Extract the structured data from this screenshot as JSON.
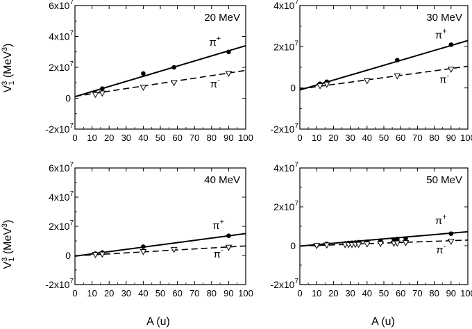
{
  "figure": {
    "ylabel_main": "V",
    "ylabel_sup": "3",
    "ylabel_sub": "1",
    "ylabel_unit": " (MeV",
    "ylabel_unit_sup": "3",
    "ylabel_close": ")",
    "xlabel": "A (u)"
  },
  "chart_data": [
    {
      "type": "scatter",
      "title": "20 MeV",
      "xlim": [
        0,
        100
      ],
      "ylim": [
        -20000000,
        60000000
      ],
      "xticks": [
        "0",
        "10",
        "20",
        "30",
        "40",
        "50",
        "60",
        "70",
        "80",
        "90",
        "100"
      ],
      "yticks": [
        {
          "value": 60000000,
          "base": "6x10",
          "exp": "7"
        },
        {
          "value": 40000000,
          "base": "4x10",
          "exp": "7"
        },
        {
          "value": 20000000,
          "base": "2x10",
          "exp": "7"
        },
        {
          "value": 0,
          "base": "0",
          "exp": ""
        },
        {
          "value": -20000000,
          "base": "-2x10",
          "exp": "7"
        }
      ],
      "series": [
        {
          "name": "π+",
          "label_base": "π",
          "label_sup": "+",
          "marker": "filled-circle",
          "line": "solid",
          "points": [
            [
              12,
              3200000
            ],
            [
              16,
              6200000
            ],
            [
              40,
              16000000
            ],
            [
              58,
              20000000
            ],
            [
              90,
              30000000
            ]
          ],
          "fit": [
            [
              0,
              1000000
            ],
            [
              100,
              34000000
            ]
          ]
        },
        {
          "name": "π-",
          "label_base": "π",
          "label_sup": "-",
          "marker": "open-triangle-down",
          "line": "dashed",
          "points": [
            [
              12,
              2300000
            ],
            [
              16,
              3200000
            ],
            [
              40,
              7000000
            ],
            [
              58,
              10000000
            ],
            [
              90,
              16000000
            ]
          ],
          "fit": [
            [
              0,
              1200000
            ],
            [
              100,
              18000000
            ]
          ]
        }
      ]
    },
    {
      "type": "scatter",
      "title": "30 MeV",
      "xlim": [
        0,
        100
      ],
      "ylim": [
        -20000000,
        40000000
      ],
      "xticks": [
        "0",
        "10",
        "20",
        "30",
        "40",
        "50",
        "60",
        "70",
        "80",
        "90",
        "100"
      ],
      "yticks": [
        {
          "value": 40000000,
          "base": "4x10",
          "exp": "7"
        },
        {
          "value": 20000000,
          "base": "2x10",
          "exp": "7"
        },
        {
          "value": 0,
          "base": "0",
          "exp": ""
        },
        {
          "value": -20000000,
          "base": "-2x10",
          "exp": "7"
        }
      ],
      "series": [
        {
          "name": "π+",
          "label_base": "π",
          "label_sup": "+",
          "marker": "filled-circle",
          "line": "solid",
          "points": [
            [
              12,
              2000000
            ],
            [
              16,
              3000000
            ],
            [
              58,
              13500000
            ],
            [
              90,
              21000000
            ]
          ],
          "fit": [
            [
              0,
              -1000000
            ],
            [
              100,
              23000000
            ]
          ]
        },
        {
          "name": "π-",
          "label_base": "π",
          "label_sup": "-",
          "marker": "open-triangle-down",
          "line": "dashed",
          "points": [
            [
              12,
              1000000
            ],
            [
              16,
              1700000
            ],
            [
              40,
              3400000
            ],
            [
              58,
              5800000
            ],
            [
              90,
              9000000
            ]
          ],
          "fit": [
            [
              0,
              -500000
            ],
            [
              100,
              10500000
            ]
          ]
        }
      ]
    },
    {
      "type": "scatter",
      "title": "40 MeV",
      "xlim": [
        0,
        100
      ],
      "ylim": [
        -20000000,
        60000000
      ],
      "xticks": [
        "0",
        "10",
        "20",
        "30",
        "40",
        "50",
        "60",
        "70",
        "80",
        "90",
        "100"
      ],
      "yticks": [
        {
          "value": 60000000,
          "base": "6x10",
          "exp": "7"
        },
        {
          "value": 40000000,
          "base": "4x10",
          "exp": "7"
        },
        {
          "value": 20000000,
          "base": "2x10",
          "exp": "7"
        },
        {
          "value": 0,
          "base": "0",
          "exp": ""
        },
        {
          "value": -20000000,
          "base": "-2x10",
          "exp": "7"
        }
      ],
      "series": [
        {
          "name": "π+",
          "label_base": "π",
          "label_sup": "+",
          "marker": "filled-circle",
          "line": "solid",
          "points": [
            [
              12,
              1200000
            ],
            [
              16,
              2000000
            ],
            [
              40,
              6000000
            ],
            [
              90,
              13500000
            ]
          ],
          "fit": [
            [
              0,
              -500000
            ],
            [
              100,
              15000000
            ]
          ]
        },
        {
          "name": "π-",
          "label_base": "π",
          "label_sup": "-",
          "marker": "open-triangle-down",
          "line": "dashed",
          "points": [
            [
              12,
              500000
            ],
            [
              16,
              800000
            ],
            [
              40,
              2500000
            ],
            [
              58,
              4000000
            ],
            [
              90,
              5500000
            ]
          ],
          "fit": [
            [
              0,
              -300000
            ],
            [
              100,
              6500000
            ]
          ]
        }
      ]
    },
    {
      "type": "scatter",
      "title": "50 MeV",
      "xlim": [
        0,
        100
      ],
      "ylim": [
        -20000000,
        40000000
      ],
      "xticks": [
        "0",
        "10",
        "20",
        "30",
        "40",
        "50",
        "60",
        "70",
        "80",
        "90",
        "100"
      ],
      "yticks": [
        {
          "value": 40000000,
          "base": "4x10",
          "exp": "7"
        },
        {
          "value": 20000000,
          "base": "2x10",
          "exp": "7"
        },
        {
          "value": 0,
          "base": "0",
          "exp": ""
        },
        {
          "value": -20000000,
          "base": "-2x10",
          "exp": "7"
        }
      ],
      "series": [
        {
          "name": "π+",
          "label_base": "π",
          "label_sup": "+",
          "marker": "filled-circle",
          "line": "solid",
          "points": [
            [
              10,
              200000
            ],
            [
              16,
              900000
            ],
            [
              27,
              1200000
            ],
            [
              29,
              1400000
            ],
            [
              31,
              1500000
            ],
            [
              33,
              1600000
            ],
            [
              35,
              1800000
            ],
            [
              40,
              2000000
            ],
            [
              48,
              2600000
            ],
            [
              56,
              3200000
            ],
            [
              58,
              3400000
            ],
            [
              63,
              3700000
            ],
            [
              90,
              6200000
            ]
          ],
          "fit": [
            [
              0,
              -200000
            ],
            [
              100,
              7200000
            ]
          ]
        },
        {
          "name": "π-",
          "label_base": "π",
          "label_sup": "-",
          "marker": "open-triangle-down",
          "line": "dashed",
          "points": [
            [
              10,
              0
            ],
            [
              16,
              300000
            ],
            [
              27,
              400000
            ],
            [
              29,
              500000
            ],
            [
              31,
              500000
            ],
            [
              33,
              600000
            ],
            [
              35,
              600000
            ],
            [
              40,
              800000
            ],
            [
              48,
              1000000
            ],
            [
              56,
              1200000
            ],
            [
              58,
              1300000
            ],
            [
              63,
              1500000
            ],
            [
              90,
              2200000
            ]
          ],
          "fit": [
            [
              0,
              -200000
            ],
            [
              100,
              2900000
            ]
          ]
        }
      ]
    }
  ]
}
